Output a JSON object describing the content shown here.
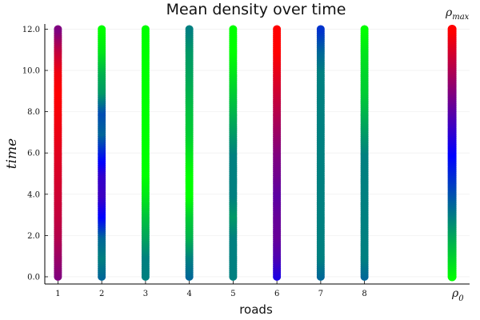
{
  "chart_data": {
    "type": "scatter",
    "title": "Mean density over time",
    "xlabel": "roads",
    "ylabel": "time",
    "x_ticks": [
      "1",
      "2",
      "3",
      "4",
      "5",
      "6",
      "7",
      "8"
    ],
    "y_ticks": [
      "0.0",
      "2.0",
      "4.0",
      "6.0",
      "8.0",
      "10.0",
      "12.0"
    ],
    "xlim": [
      0.7,
      10.4
    ],
    "ylim": [
      -0.35,
      12.25
    ],
    "grid": true,
    "legend": "none",
    "time_samples": [
      0,
      1,
      2,
      3,
      4,
      5,
      6,
      7,
      8,
      9,
      10,
      11,
      12
    ],
    "series": [
      {
        "road": 1,
        "density": [
          0.75,
          0.8,
          0.85,
          0.88,
          0.9,
          0.92,
          0.94,
          0.96,
          0.98,
          1.0,
          0.97,
          0.88,
          0.75
        ]
      },
      {
        "road": 2,
        "density": [
          0.3,
          0.25,
          0.3,
          0.5,
          0.62,
          0.6,
          0.45,
          0.3,
          0.35,
          0.2,
          0.15,
          0.05,
          0.0
        ]
      },
      {
        "road": 3,
        "density": [
          0.25,
          0.25,
          0.18,
          0.12,
          0.05,
          0.0,
          0.0,
          0.0,
          0.0,
          0.0,
          0.0,
          0.0,
          0.0
        ]
      },
      {
        "road": 4,
        "density": [
          0.3,
          0.25,
          0.15,
          0.1,
          0.0,
          0.0,
          0.05,
          0.1,
          0.12,
          0.15,
          0.18,
          0.2,
          0.25
        ]
      },
      {
        "road": 5,
        "density": [
          0.25,
          0.25,
          0.25,
          0.2,
          0.25,
          0.25,
          0.25,
          0.2,
          0.15,
          0.1,
          0.05,
          0.0,
          0.0
        ]
      },
      {
        "road": 6,
        "density": [
          0.55,
          0.65,
          0.7,
          0.7,
          0.68,
          0.72,
          0.75,
          0.8,
          0.85,
          0.9,
          0.95,
          1.0,
          1.0
        ]
      },
      {
        "road": 7,
        "density": [
          0.3,
          0.25,
          0.25,
          0.25,
          0.25,
          0.25,
          0.25,
          0.25,
          0.25,
          0.25,
          0.25,
          0.3,
          0.4
        ]
      },
      {
        "road": 8,
        "density": [
          0.3,
          0.25,
          0.25,
          0.25,
          0.25,
          0.25,
          0.25,
          0.2,
          0.15,
          0.1,
          0.08,
          0.05,
          0.0
        ]
      }
    ],
    "colorbar": {
      "x": 10,
      "label_max": "ρ",
      "label_max_sub": "max",
      "label_min": "ρ",
      "label_min_sub": "0",
      "colormap": [
        "#00ff00",
        "#0000ff",
        "#ff0000"
      ]
    }
  }
}
